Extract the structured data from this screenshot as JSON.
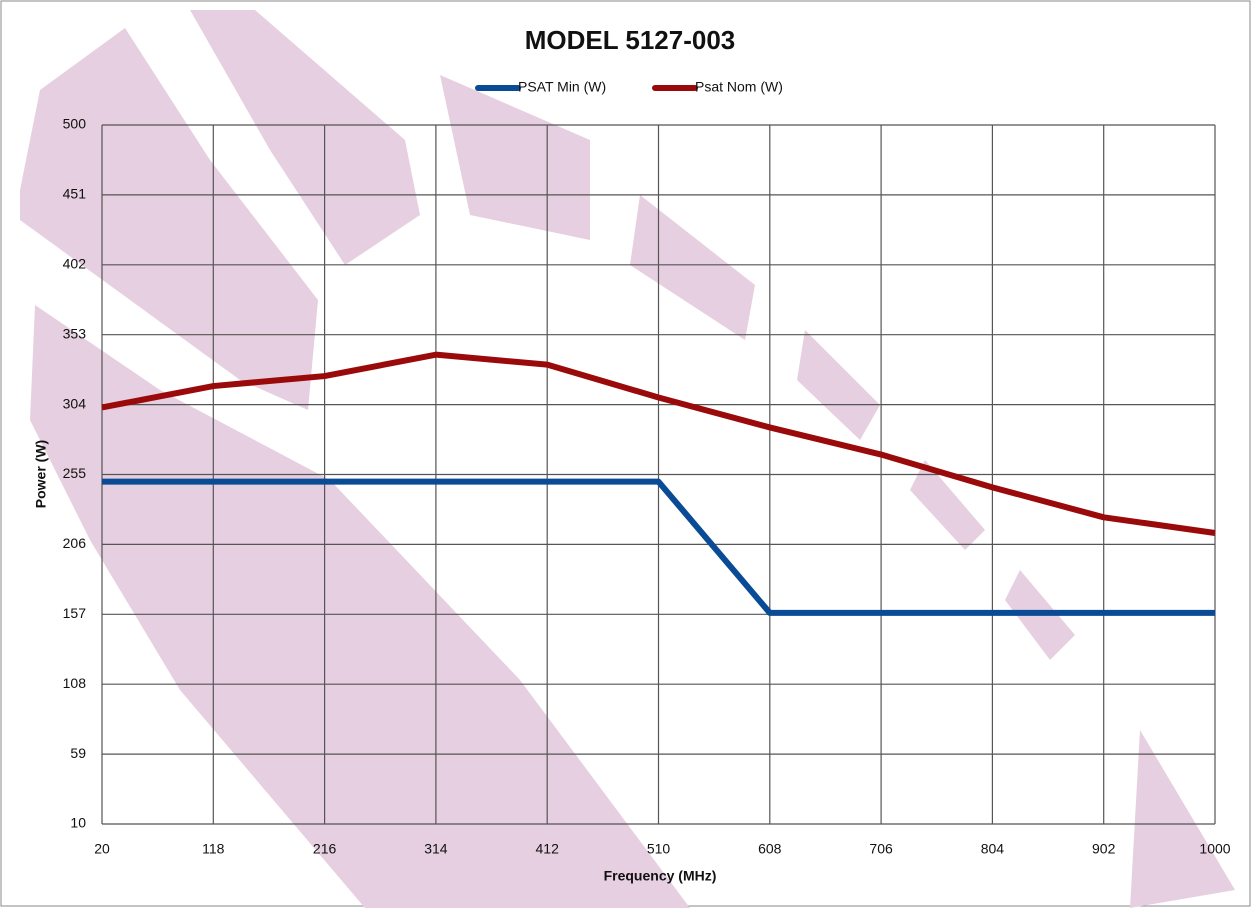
{
  "chart_data": {
    "type": "line",
    "title": "MODEL 5127-003",
    "x_label": "Frequency (MHz)",
    "y_label": "Power (W)",
    "x": [
      20,
      118,
      216,
      314,
      412,
      510,
      608,
      706,
      804,
      902,
      1000
    ],
    "series": [
      {
        "name": "PSAT Min (W)",
        "color": "#0a4b96",
        "values": [
          250,
          250,
          250,
          250,
          250,
          250,
          158,
          158,
          158,
          158,
          158
        ]
      },
      {
        "name": "Psat Nom (W)",
        "color": "#9b0a0a",
        "values": [
          302,
          317,
          324,
          339,
          332,
          309,
          288,
          269,
          246,
          225,
          214
        ]
      }
    ],
    "xlim": [
      20,
      1000
    ],
    "xticks": [
      20,
      118,
      216,
      314,
      412,
      510,
      608,
      706,
      804,
      902,
      1000
    ],
    "ylim": [
      10,
      500
    ],
    "yticks": [
      10,
      59,
      108,
      157,
      206,
      255,
      304,
      353,
      402,
      451,
      500
    ],
    "grid": true,
    "legend": "top"
  }
}
